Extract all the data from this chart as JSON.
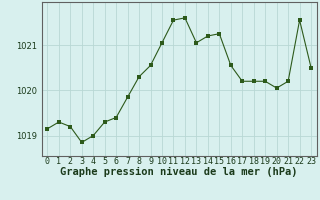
{
  "x": [
    0,
    1,
    2,
    3,
    4,
    5,
    6,
    7,
    8,
    9,
    10,
    11,
    12,
    13,
    14,
    15,
    16,
    17,
    18,
    19,
    20,
    21,
    22,
    23
  ],
  "y": [
    1019.15,
    1019.3,
    1019.2,
    1018.85,
    1019.0,
    1019.3,
    1019.4,
    1019.85,
    1020.3,
    1020.55,
    1021.05,
    1021.55,
    1021.6,
    1021.05,
    1021.2,
    1021.25,
    1020.55,
    1020.2,
    1020.2,
    1020.2,
    1020.05,
    1020.2,
    1021.55,
    1020.5
  ],
  "line_color": "#2d5a1b",
  "marker_color": "#2d5a1b",
  "bg_color": "#d8f0ee",
  "grid_color": "#b8d8d4",
  "xlabel": "Graphe pression niveau de la mer (hPa)",
  "xlabel_fontsize": 7.5,
  "yticks": [
    1019,
    1020,
    1021
  ],
  "ylim": [
    1018.55,
    1021.95
  ],
  "xlim": [
    -0.5,
    23.5
  ],
  "xtick_labels": [
    "0",
    "1",
    "2",
    "3",
    "4",
    "5",
    "6",
    "7",
    "8",
    "9",
    "10",
    "11",
    "12",
    "13",
    "14",
    "15",
    "16",
    "17",
    "18",
    "19",
    "20",
    "21",
    "22",
    "23"
  ],
  "tick_fontsize": 6.0,
  "spine_color": "#606060"
}
